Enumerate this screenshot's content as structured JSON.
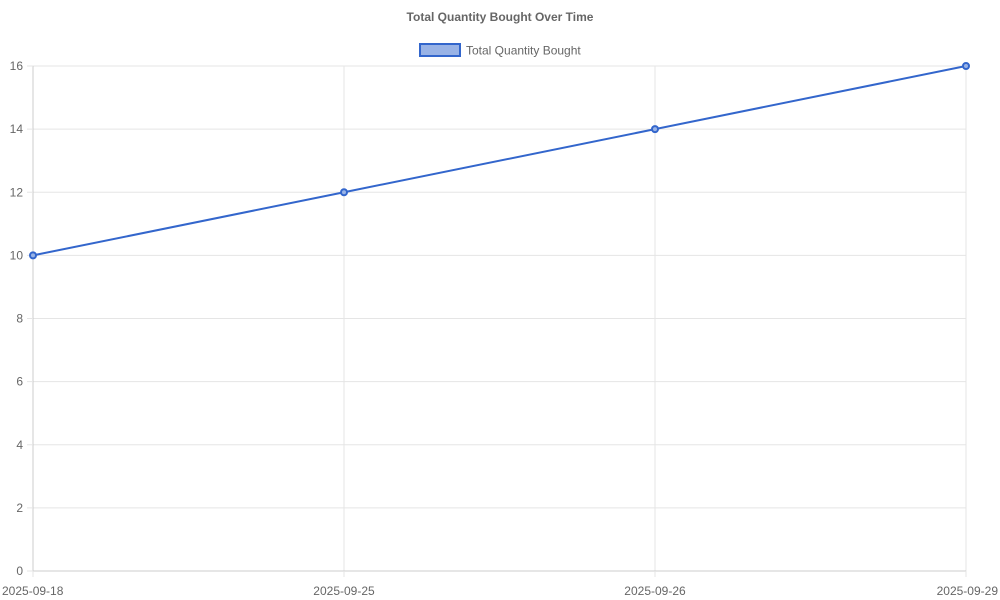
{
  "chart_data": {
    "type": "line",
    "title": "Total Quantity Bought Over Time",
    "categories": [
      "2025-09-18",
      "2025-09-25",
      "2025-09-26",
      "2025-09-29"
    ],
    "series": [
      {
        "name": "Total Quantity Bought",
        "values": [
          10,
          12,
          14,
          16
        ],
        "color": "#3366cc",
        "fill": "#99b3e6"
      }
    ],
    "ylim": [
      0,
      16
    ],
    "yticks": [
      "0",
      "2",
      "4",
      "6",
      "8",
      "10",
      "12",
      "14",
      "16"
    ],
    "grid": true,
    "legend_position": "top"
  }
}
